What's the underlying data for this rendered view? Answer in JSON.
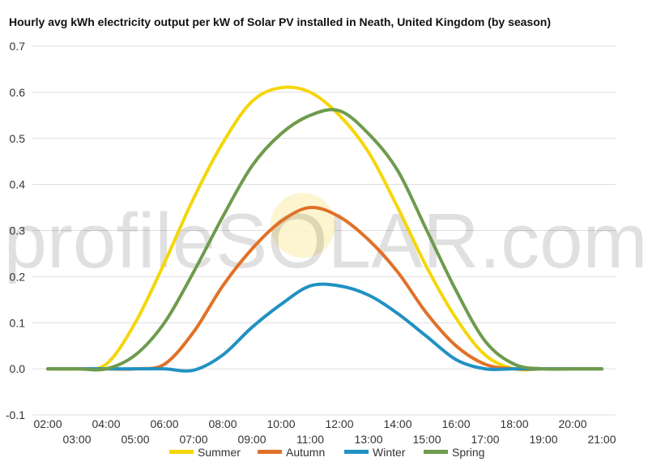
{
  "chart_data": {
    "type": "line",
    "title": "Hourly avg kWh electricity output per kW of Solar PV installed in Neath, United Kingdom (by season)",
    "xlabel": "",
    "ylabel": "",
    "x": [
      "02:00",
      "03:00",
      "04:00",
      "05:00",
      "06:00",
      "07:00",
      "08:00",
      "09:00",
      "10:00",
      "11:00",
      "12:00",
      "13:00",
      "14:00",
      "15:00",
      "16:00",
      "17:00",
      "18:00",
      "19:00",
      "20:00",
      "21:00"
    ],
    "ylim": [
      -0.1,
      0.7
    ],
    "yticks": [
      "-0.1",
      "0.0",
      "0.1",
      "0.2",
      "0.3",
      "0.4",
      "0.5",
      "0.6",
      "0.7"
    ],
    "grid": true,
    "legend_position": "bottom",
    "watermark": "profileSOLAR.com",
    "series": [
      {
        "name": "Summer",
        "color": "#f5d60a",
        "values": [
          0.0,
          0.0,
          0.01,
          0.1,
          0.23,
          0.37,
          0.49,
          0.58,
          0.61,
          0.6,
          0.55,
          0.47,
          0.35,
          0.22,
          0.11,
          0.03,
          0.0,
          0.0,
          0.0,
          0.0
        ]
      },
      {
        "name": "Autumn",
        "color": "#e07128",
        "values": [
          0.0,
          0.0,
          0.0,
          0.0,
          0.01,
          0.08,
          0.18,
          0.26,
          0.32,
          0.35,
          0.33,
          0.28,
          0.21,
          0.12,
          0.05,
          0.01,
          0.0,
          0.0,
          0.0,
          0.0
        ]
      },
      {
        "name": "Winter",
        "color": "#2191c3",
        "values": [
          0.0,
          0.0,
          0.0,
          0.0,
          0.0,
          -0.003,
          0.03,
          0.09,
          0.14,
          0.18,
          0.18,
          0.16,
          0.12,
          0.07,
          0.02,
          0.0,
          0.0,
          0.0,
          0.0,
          0.0
        ]
      },
      {
        "name": "Spring",
        "color": "#6e9b4d",
        "values": [
          0.0,
          0.0,
          0.0,
          0.03,
          0.1,
          0.21,
          0.33,
          0.44,
          0.51,
          0.55,
          0.56,
          0.51,
          0.43,
          0.3,
          0.17,
          0.06,
          0.01,
          0.0,
          0.0,
          0.0
        ]
      }
    ]
  }
}
